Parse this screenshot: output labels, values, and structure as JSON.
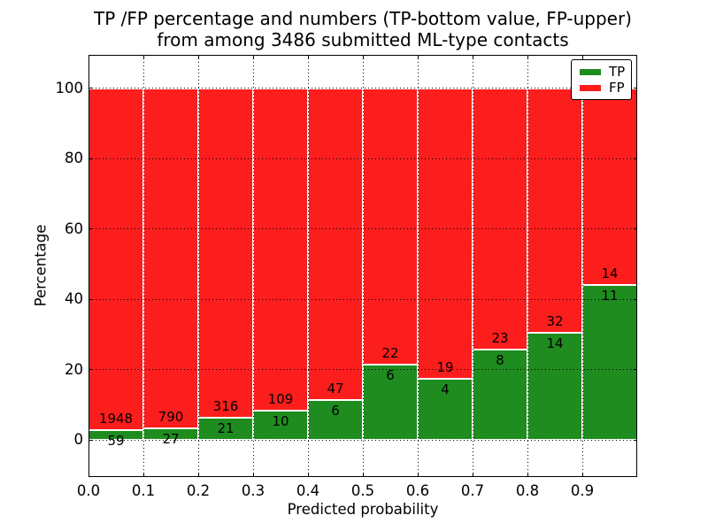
{
  "title": {
    "line1": "TP /FP percentage and numbers (TP-bottom value, FP-upper)",
    "line2": "from among 3486 submitted ML-type contacts"
  },
  "axes": {
    "xlabel": "Predicted probability",
    "ylabel": "Percentage",
    "x_tick_labels": [
      "0.0",
      "0.1",
      "0.2",
      "0.3",
      "0.4",
      "0.5",
      "0.6",
      "0.7",
      "0.8",
      "0.9"
    ],
    "x_tick_values": [
      0.0,
      0.1,
      0.2,
      0.3,
      0.4,
      0.5,
      0.6,
      0.7,
      0.8,
      0.9
    ],
    "y_tick_labels": [
      "0",
      "20",
      "40",
      "60",
      "80",
      "100"
    ],
    "y_tick_values": [
      0,
      20,
      40,
      60,
      80,
      100
    ],
    "xlim": [
      0.0,
      1.0
    ],
    "ylim": [
      -10.5,
      109.5
    ],
    "grid": {
      "style": "dotted",
      "color": "#000000"
    }
  },
  "legend": {
    "position": "upper-right",
    "items": [
      {
        "label": "TP",
        "color": "#1e8c1e"
      },
      {
        "label": "FP",
        "color": "#fc1d1d"
      }
    ]
  },
  "chart_data": {
    "type": "bar",
    "stacked": true,
    "normalization": "each bin stacked to 100 percent",
    "total_contacts": 3486,
    "bin_width": 0.1,
    "categories": [
      "0.0-0.1",
      "0.1-0.2",
      "0.2-0.3",
      "0.3-0.4",
      "0.4-0.5",
      "0.5-0.6",
      "0.6-0.7",
      "0.7-0.8",
      "0.8-0.9",
      "0.9-1.0"
    ],
    "series": [
      {
        "name": "TP",
        "color": "#1e8c1e",
        "counts": [
          59,
          27,
          21,
          10,
          6,
          6,
          4,
          8,
          14,
          11
        ]
      },
      {
        "name": "FP",
        "color": "#fc1d1d",
        "counts": [
          1948,
          790,
          316,
          109,
          47,
          22,
          19,
          23,
          32,
          14
        ]
      }
    ],
    "tp_percent": [
      2.9,
      3.3,
      6.2,
      8.4,
      11.3,
      21.4,
      17.4,
      25.8,
      30.4,
      44.0
    ]
  }
}
